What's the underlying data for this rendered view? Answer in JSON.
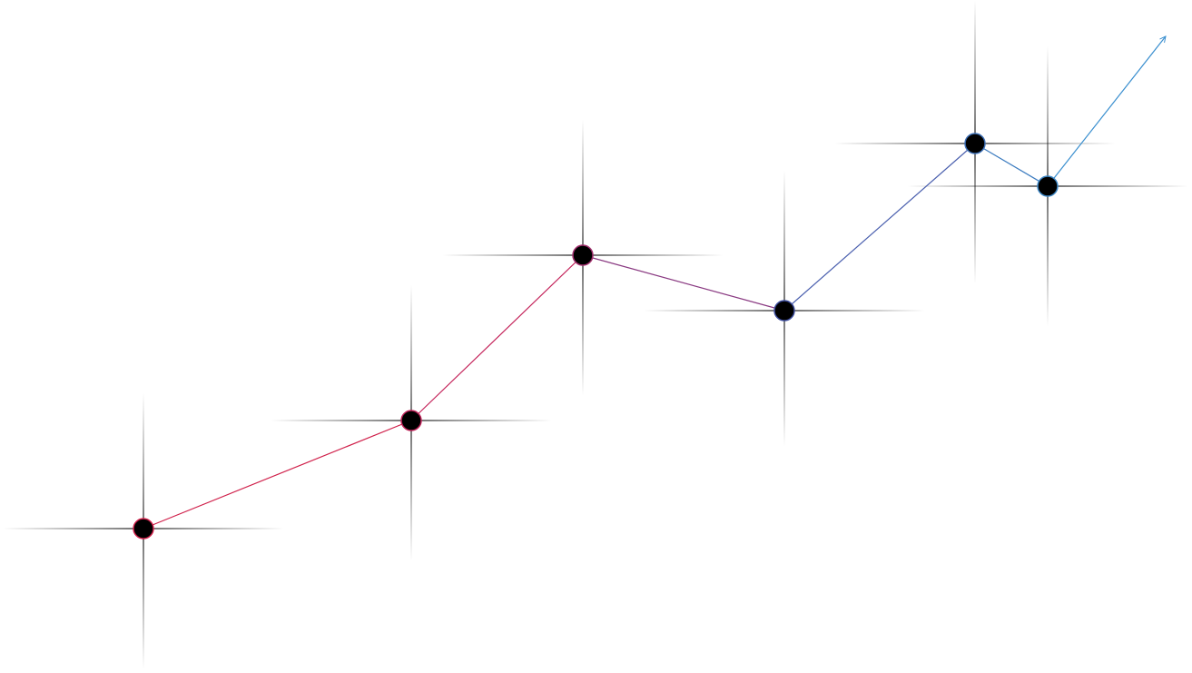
{
  "diagram": {
    "background_color": "#ffffff",
    "node_fill_color": "#000000",
    "crosshair_color": "#000000",
    "arrow_color": "#3a8fcf",
    "nodes": [
      {
        "id": "node-1",
        "outline_color": "#d0214b"
      },
      {
        "id": "node-2",
        "outline_color": "#c0245a"
      },
      {
        "id": "node-3",
        "outline_color": "#a2306e"
      },
      {
        "id": "node-4",
        "outline_color": "#3f4f9e"
      },
      {
        "id": "node-5",
        "outline_color": "#3d6fb5"
      },
      {
        "id": "node-6",
        "outline_color": "#3d86c4"
      }
    ],
    "segments": [
      {
        "from": "node-1",
        "to": "node-2",
        "color": "#d0214b"
      },
      {
        "from": "node-2",
        "to": "node-3",
        "color": "#c4235a"
      },
      {
        "from": "node-3",
        "to": "node-4",
        "color": "#8a3a82"
      },
      {
        "from": "node-4",
        "to": "node-5",
        "color": "#4a5fae"
      },
      {
        "from": "node-5",
        "to": "node-6",
        "color": "#3d7cc0"
      }
    ],
    "trend_arrow": {
      "from": "node-6",
      "style": "open-arrowhead"
    }
  }
}
